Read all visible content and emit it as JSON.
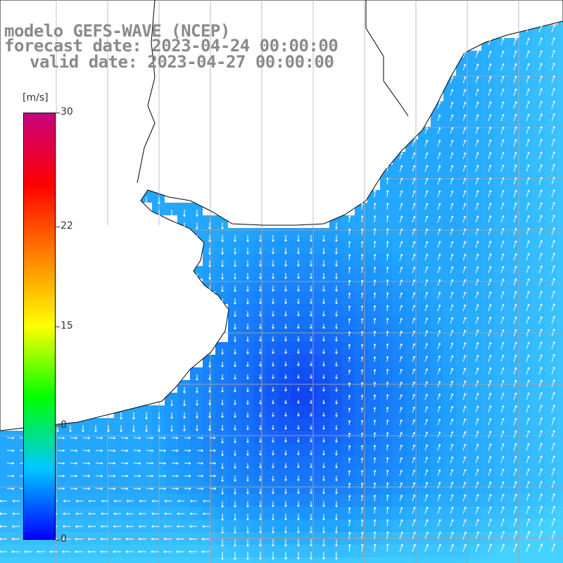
{
  "title": {
    "line1": "modelo GEFS-WAVE (NCEP)",
    "line2": "forecast date: 2023-04-24 00:00:00",
    "line3": "valid date: 2023-04-27 00:00:00"
  },
  "colorbar": {
    "unit": "[m/s]",
    "ticks": [
      {
        "label": "30",
        "value": 30
      },
      {
        "label": "22",
        "value": 22
      },
      {
        "label": "15",
        "value": 15
      },
      {
        "label": "8",
        "value": 8
      },
      {
        "label": "0",
        "value": 0
      }
    ],
    "colors": [
      "#0000ff",
      "#00c8ff",
      "#00ff00",
      "#ffff00",
      "#ff8000",
      "#ff0000",
      "#c80080"
    ]
  },
  "map": {
    "land_color": "#ffffff",
    "coast_color": "#000000",
    "grid_color": "#a0a0a0",
    "field_colors": {
      "low": "#0a28e6",
      "mid": "#1e8cff",
      "high": "#3cc8ff"
    },
    "arrow_color": "#ffffff"
  }
}
